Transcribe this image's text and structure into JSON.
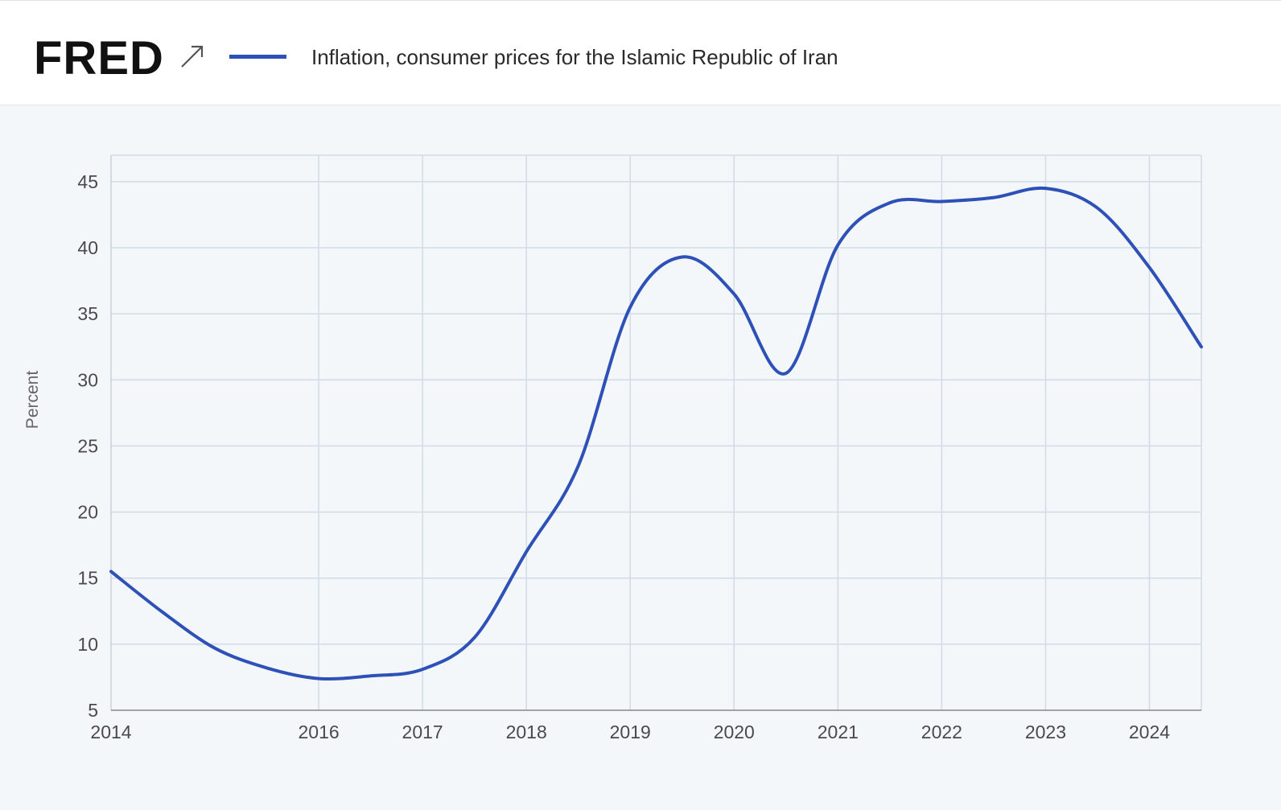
{
  "header": {
    "logo_text": "FRED",
    "logo_icon": "trend-arrow-icon",
    "legend_label": "Inflation, consumer prices for the Islamic Republic of Iran",
    "series_color": "#2d51b7"
  },
  "chart_data": {
    "type": "line",
    "title": "",
    "xlabel": "",
    "ylabel": "Percent",
    "ylim": [
      5,
      47
    ],
    "xlim": [
      2014,
      2024.5
    ],
    "y_ticks": [
      5,
      10,
      15,
      20,
      25,
      30,
      35,
      40,
      45
    ],
    "x_ticks": [
      2014,
      2016,
      2017,
      2018,
      2019,
      2020,
      2021,
      2022,
      2023,
      2024
    ],
    "grid": true,
    "series": [
      {
        "name": "Inflation, consumer prices for the Islamic Republic of Iran",
        "color": "#2d51b7",
        "x": [
          2014,
          2014.5,
          2015,
          2015.5,
          2016,
          2016.5,
          2017,
          2017.5,
          2018,
          2018.5,
          2019,
          2019.5,
          2020,
          2020.5,
          2021,
          2021.5,
          2022,
          2022.5,
          2023,
          2023.5,
          2024,
          2024.5
        ],
        "values": [
          15.5,
          12.4,
          9.7,
          8.2,
          7.4,
          7.6,
          8.1,
          10.5,
          17.0,
          23.5,
          35.5,
          39.3,
          36.5,
          30.5,
          40.2,
          43.4,
          43.5,
          43.8,
          44.5,
          43.0,
          38.5,
          32.5
        ]
      }
    ]
  }
}
